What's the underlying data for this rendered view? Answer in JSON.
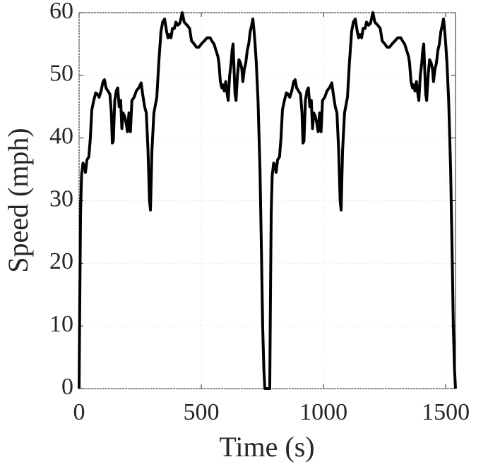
{
  "chart_data": {
    "type": "line",
    "x_label": "Time (s)",
    "y_label": "Speed (mph)",
    "color": "#000000",
    "grid": true,
    "xlim": [
      0,
      1540
    ],
    "ylim": [
      0,
      60
    ],
    "xticks": [
      0,
      500,
      1000,
      1500
    ],
    "yticks": [
      0,
      10,
      20,
      30,
      40,
      50,
      60
    ],
    "x": [
      0,
      3,
      6,
      10,
      16,
      22,
      26,
      32,
      40,
      46,
      52,
      60,
      68,
      75,
      82,
      90,
      98,
      104,
      110,
      118,
      126,
      132,
      136,
      140,
      146,
      152,
      158,
      164,
      170,
      175,
      180,
      186,
      192,
      198,
      204,
      210,
      216,
      225,
      234,
      244,
      254,
      260,
      268,
      275,
      282,
      288,
      292,
      298,
      306,
      318,
      326,
      335,
      342,
      350,
      358,
      364,
      370,
      376,
      382,
      390,
      396,
      404,
      412,
      422,
      430,
      442,
      452,
      460,
      471,
      480,
      490,
      500,
      512,
      524,
      536,
      543,
      552,
      560,
      568,
      572,
      578,
      584,
      588,
      594,
      600,
      606,
      610,
      616,
      622,
      626,
      630,
      634,
      638,
      642,
      648,
      654,
      660,
      666,
      670,
      676,
      682,
      688,
      694,
      700,
      706,
      711,
      716,
      720,
      725,
      732,
      740,
      746,
      751,
      756,
      760,
      780,
      783,
      786,
      790,
      796,
      802,
      806,
      812,
      820,
      826,
      832,
      840,
      848,
      855,
      862,
      870,
      878,
      884,
      890,
      898,
      906,
      912,
      916,
      920,
      926,
      932,
      938,
      944,
      950,
      955,
      960,
      966,
      972,
      978,
      984,
      990,
      996,
      1005,
      1014,
      1024,
      1034,
      1040,
      1048,
      1055,
      1062,
      1068,
      1072,
      1078,
      1086,
      1098,
      1106,
      1115,
      1122,
      1130,
      1138,
      1144,
      1150,
      1156,
      1162,
      1170,
      1176,
      1184,
      1192,
      1202,
      1210,
      1222,
      1232,
      1240,
      1251,
      1260,
      1270,
      1280,
      1292,
      1304,
      1316,
      1323,
      1332,
      1340,
      1348,
      1352,
      1358,
      1364,
      1368,
      1374,
      1380,
      1386,
      1390,
      1396,
      1402,
      1406,
      1410,
      1414,
      1418,
      1422,
      1428,
      1434,
      1440,
      1446,
      1450,
      1456,
      1462,
      1468,
      1474,
      1480,
      1486,
      1491,
      1496,
      1500,
      1505,
      1512,
      1520,
      1526,
      1531,
      1536,
      1540
    ],
    "values": [
      0,
      15,
      28,
      34,
      36,
      35.5,
      34.5,
      36.5,
      37,
      40,
      44.5,
      46,
      47.2,
      47,
      46.5,
      47.5,
      49,
      49.3,
      48,
      47.5,
      47,
      44,
      39.2,
      39.5,
      46,
      47.5,
      48,
      45,
      46,
      41.5,
      44,
      43.5,
      42.5,
      41,
      44,
      41,
      46,
      46.5,
      47.5,
      48,
      48.8,
      47,
      45,
      44,
      38,
      30,
      28.5,
      38,
      44,
      46.5,
      52,
      57,
      58.5,
      59,
      57,
      56,
      56.5,
      56,
      57.5,
      57.5,
      58.5,
      58,
      58.3,
      60,
      58.5,
      58,
      57.5,
      55.5,
      55,
      54.5,
      54.5,
      55,
      55.5,
      56,
      56,
      55.5,
      55,
      54,
      53,
      52,
      49,
      48,
      48.5,
      47.5,
      49,
      47,
      46,
      50,
      52,
      54,
      55,
      51,
      47,
      46,
      50,
      52.5,
      52,
      51,
      49,
      51,
      52,
      54,
      55,
      57,
      58,
      59,
      57,
      55,
      52,
      46,
      35,
      22,
      10,
      3,
      0,
      0,
      15,
      28,
      34,
      36,
      35.5,
      34.5,
      36.5,
      37,
      40,
      44.5,
      46,
      47.2,
      47,
      46.5,
      47.5,
      49,
      49.3,
      48,
      47.5,
      47,
      44,
      39.2,
      39.5,
      46,
      47.5,
      48,
      45,
      46,
      41.5,
      44,
      43.5,
      42.5,
      41,
      44,
      41,
      46,
      46.5,
      47.5,
      48,
      48.8,
      47,
      45,
      44,
      38,
      30,
      28.5,
      38,
      44,
      46.5,
      52,
      57,
      58.5,
      59,
      57,
      56,
      56.5,
      56,
      57.5,
      57.5,
      58.5,
      58,
      58.3,
      60,
      58.5,
      58,
      57.5,
      55.5,
      55,
      54.5,
      54.5,
      55,
      55.5,
      56,
      56,
      55.5,
      55,
      54,
      53,
      52,
      49,
      48,
      48.5,
      47.5,
      49,
      47,
      46,
      50,
      52,
      54,
      55,
      51,
      47,
      46,
      50,
      52.5,
      52,
      51,
      49,
      51,
      52,
      54,
      55,
      57,
      58,
      59,
      57,
      55,
      52,
      46,
      35,
      22,
      10,
      3,
      0
    ]
  }
}
